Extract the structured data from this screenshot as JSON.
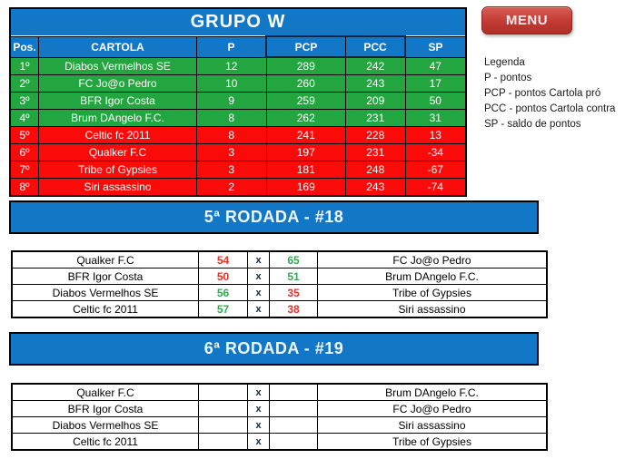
{
  "group": {
    "title": "GRUPO W"
  },
  "menu": {
    "label": "MENU"
  },
  "palette": {
    "header_blue": "#1277C6",
    "win_zone_green": "#23A63F",
    "lose_zone_red": "#FB0A0A",
    "score_win_green": "#33A853",
    "score_lose_red": "#E8322B",
    "selection_outline": "#10243D",
    "button_red": "#C23A33"
  },
  "standings": {
    "columns": [
      "Pos.",
      "CARTOLA",
      "P",
      "PCP",
      "PCC",
      "SP"
    ],
    "rows": [
      {
        "pos": "1º",
        "team": "Diabos Vermelhos SE",
        "p": "12",
        "pcp": "289",
        "pcc": "242",
        "sp": "47",
        "bg": "#23A63F"
      },
      {
        "pos": "2º",
        "team": "FC Jo@o Pedro",
        "p": "10",
        "pcp": "260",
        "pcc": "243",
        "sp": "17",
        "bg": "#23A63F"
      },
      {
        "pos": "3º",
        "team": "BFR Igor Costa",
        "p": "9",
        "pcp": "259",
        "pcc": "209",
        "sp": "50",
        "bg": "#23A63F"
      },
      {
        "pos": "4º",
        "team": "Brum DAngelo F.C.",
        "p": "8",
        "pcp": "262",
        "pcc": "231",
        "sp": "31",
        "bg": "#23A63F"
      },
      {
        "pos": "5º",
        "team": "Celtic fc 2011",
        "p": "8",
        "pcp": "241",
        "pcc": "228",
        "sp": "13",
        "bg": "#FB0A0A"
      },
      {
        "pos": "6º",
        "team": "Qualker F.C",
        "p": "3",
        "pcp": "197",
        "pcc": "231",
        "sp": "-34",
        "bg": "#FB0A0A"
      },
      {
        "pos": "7º",
        "team": "Tribe of Gypsies",
        "p": "3",
        "pcp": "181",
        "pcc": "248",
        "sp": "-67",
        "bg": "#FB0A0A"
      },
      {
        "pos": "8º",
        "team": "Siri assassino",
        "p": "2",
        "pcp": "169",
        "pcc": "243",
        "sp": "-74",
        "bg": "#FB0A0A"
      }
    ]
  },
  "legend": {
    "title": "Legenda",
    "items": [
      "P - pontos",
      "PCP - pontos Cartola pró",
      "PCC - pontos Cartola contra",
      "SP - saldo de pontos"
    ]
  },
  "separator": "x",
  "rounds": [
    {
      "title": "5ª RODADA - #18",
      "matches": [
        {
          "home": "Qualker F.C",
          "home_score": "54",
          "home_color": "#E8322B",
          "away_score": "65",
          "away_color": "#33A853",
          "away": "FC Jo@o Pedro"
        },
        {
          "home": "BFR Igor Costa",
          "home_score": "50",
          "home_color": "#E8322B",
          "away_score": "51",
          "away_color": "#33A853",
          "away": "Brum DAngelo F.C."
        },
        {
          "home": "Diabos Vermelhos SE",
          "home_score": "56",
          "home_color": "#33A853",
          "away_score": "35",
          "away_color": "#E8322B",
          "away": "Tribe of Gypsies"
        },
        {
          "home": "Celtic fc 2011",
          "home_score": "57",
          "home_color": "#33A853",
          "away_score": "38",
          "away_color": "#E8322B",
          "away": "Siri assassino"
        }
      ]
    },
    {
      "title": "6ª RODADA - #19",
      "matches": [
        {
          "home": "Qualker F.C",
          "home_score": "",
          "home_color": "#000000",
          "away_score": "",
          "away_color": "#000000",
          "away": "Brum DAngelo F.C."
        },
        {
          "home": "BFR Igor Costa",
          "home_score": "",
          "home_color": "#000000",
          "away_score": "",
          "away_color": "#000000",
          "away": "FC Jo@o Pedro"
        },
        {
          "home": "Diabos Vermelhos SE",
          "home_score": "",
          "home_color": "#000000",
          "away_score": "",
          "away_color": "#000000",
          "away": "Siri assassino"
        },
        {
          "home": "Celtic fc 2011",
          "home_score": "",
          "home_color": "#000000",
          "away_score": "",
          "away_color": "#000000",
          "away": "Tribe of Gypsies"
        }
      ]
    }
  ]
}
